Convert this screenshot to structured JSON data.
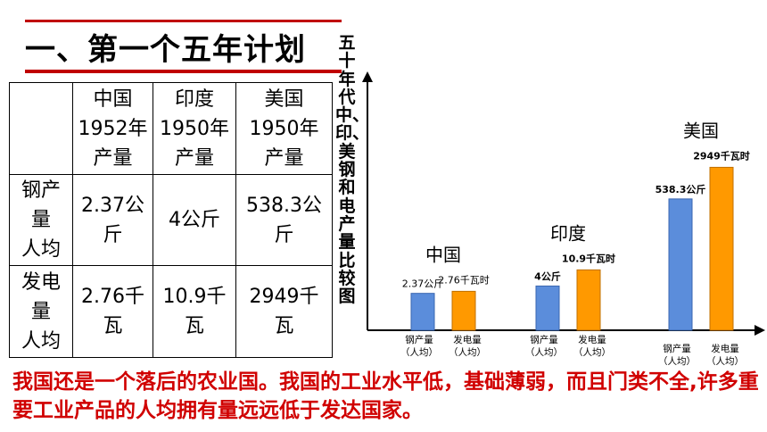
{
  "title": "一、第一个五年计划",
  "table": {
    "headers": [
      "",
      "中国\n1952年\n产量",
      "印度\n1950年\n产量",
      "美国\n1950年\n产量"
    ],
    "rows": [
      {
        "label": "钢产\n量\n人均",
        "cells": [
          "2.37公\n斤",
          "4公斤",
          "538.3公\n斤"
        ]
      },
      {
        "label": "发电\n量\n人均",
        "cells": [
          "2.76千\n瓦",
          "10.9千\n瓦",
          "2949千\n瓦"
        ]
      }
    ]
  },
  "chart_title": "五十年代中、印、美钢和电产量比较图",
  "chart_data": {
    "type": "bar",
    "groups": [
      {
        "country": "中国",
        "steel": 2.37,
        "steel_label": "2.37公斤",
        "electricity": 2.76,
        "electricity_label": "2.76千瓦时"
      },
      {
        "country": "印度",
        "steel": 4,
        "steel_label": "4公斤",
        "electricity": 10.9,
        "electricity_label": "10.9千瓦时"
      },
      {
        "country": "美国",
        "steel": 538.3,
        "steel_label": "538.3公斤",
        "electricity": 2949,
        "electricity_label": "2949千瓦时"
      }
    ],
    "category_labels": [
      "钢产量\n（人均）",
      "发电量\n（人均）"
    ],
    "colors": {
      "steel": "#5b8ddb",
      "electricity": "#ff9900"
    }
  },
  "footer": "我国还是一个落后的农业国。我国的工业水平低，基础薄弱，而且门类不全,许多重要工业产品的人均拥有量远远低于发达国家。"
}
